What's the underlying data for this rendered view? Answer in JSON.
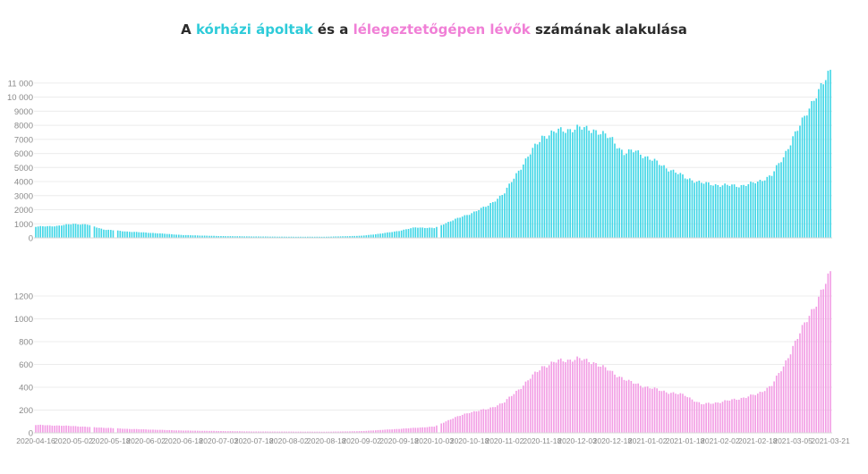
{
  "title": {
    "part1": "A ",
    "part2": "kórházi ápoltak",
    "part3": " és a ",
    "part4": "lélegeztetőgépen lévők",
    "part5": " számának alakulása"
  },
  "colors": {
    "hospitalized": "#3fd6e6",
    "ventilated": "#f29ce4",
    "title_cyan": "#2ecbd9",
    "title_pink": "#f07fd6"
  },
  "chart_data": [
    {
      "type": "bar",
      "title": "",
      "xlabel": "",
      "ylabel": "",
      "ylim": [
        0,
        11500
      ],
      "yticks": [
        0,
        1000,
        2000,
        3000,
        4000,
        5000,
        6000,
        7000,
        8000,
        9000,
        10000,
        11000
      ],
      "ytick_labels": [
        "0",
        "1000",
        "2000",
        "3000",
        "4000",
        "5000",
        "6000",
        "7000",
        "8000",
        "9000",
        "10 000",
        "11 000"
      ],
      "grid": true,
      "x_start": "2020-04-16",
      "x_end": "2021-03-21",
      "keypoints": [
        [
          "2020-04-16",
          800
        ],
        [
          "2020-04-25",
          850
        ],
        [
          "2020-05-02",
          1000
        ],
        [
          "2020-05-08",
          950
        ],
        [
          "2020-05-15",
          600
        ],
        [
          "2020-05-25",
          450
        ],
        [
          "2020-06-05",
          350
        ],
        [
          "2020-06-18",
          200
        ],
        [
          "2020-07-03",
          130
        ],
        [
          "2020-07-18",
          100
        ],
        [
          "2020-08-02",
          80
        ],
        [
          "2020-08-18",
          80
        ],
        [
          "2020-09-02",
          150
        ],
        [
          "2020-09-10",
          300
        ],
        [
          "2020-09-18",
          500
        ],
        [
          "2020-09-25",
          750
        ],
        [
          "2020-10-03",
          700
        ],
        [
          "2020-10-10",
          1200
        ],
        [
          "2020-10-18",
          1700
        ],
        [
          "2020-10-26",
          2300
        ],
        [
          "2020-11-02",
          3200
        ],
        [
          "2020-11-08",
          4800
        ],
        [
          "2020-11-13",
          6000
        ],
        [
          "2020-11-18",
          7200
        ],
        [
          "2020-11-25",
          7600
        ],
        [
          "2020-12-03",
          7800
        ],
        [
          "2020-12-10",
          7700
        ],
        [
          "2020-12-18",
          7000
        ],
        [
          "2020-12-23",
          6000
        ],
        [
          "2020-12-28",
          6200
        ],
        [
          "2021-01-02",
          5700
        ],
        [
          "2021-01-10",
          5000
        ],
        [
          "2021-01-18",
          4300
        ],
        [
          "2021-01-25",
          3900
        ],
        [
          "2021-02-02",
          3750
        ],
        [
          "2021-02-10",
          3700
        ],
        [
          "2021-02-18",
          3950
        ],
        [
          "2021-02-24",
          4500
        ],
        [
          "2021-03-01",
          5700
        ],
        [
          "2021-03-05",
          7200
        ],
        [
          "2021-03-10",
          8500
        ],
        [
          "2021-03-15",
          10300
        ],
        [
          "2021-03-21",
          11700
        ]
      ],
      "gaps": [
        "2020-05-10",
        "2020-05-20",
        "2020-10-05"
      ]
    },
    {
      "type": "bar",
      "title": "",
      "xlabel": "",
      "ylabel": "",
      "ylim": [
        0,
        1420
      ],
      "yticks": [
        0,
        200,
        400,
        600,
        800,
        1000,
        1200
      ],
      "ytick_labels": [
        "0",
        "200",
        "400",
        "600",
        "800",
        "1000",
        "1200"
      ],
      "grid": true,
      "x_start": "2020-04-16",
      "x_end": "2021-03-21",
      "xtick_labels": [
        "2020-04-16",
        "2020-05-02",
        "2020-05-18",
        "2020-06-02",
        "2020-06-18",
        "2020-07-03",
        "2020-07-18",
        "2020-08-02",
        "2020-08-18",
        "2020-09-02",
        "2020-09-18",
        "2020-10-03",
        "2020-10-18",
        "2020-11-02",
        "2020-11-18",
        "2020-12-03",
        "2020-12-18",
        "2021-01-02",
        "2021-01-18",
        "2021-02-02",
        "2021-02-18",
        "2021-03-05",
        "2021-03-21"
      ],
      "keypoints": [
        [
          "2020-04-16",
          70
        ],
        [
          "2020-05-02",
          60
        ],
        [
          "2020-05-10",
          50
        ],
        [
          "2020-05-25",
          35
        ],
        [
          "2020-06-18",
          20
        ],
        [
          "2020-07-18",
          12
        ],
        [
          "2020-08-18",
          10
        ],
        [
          "2020-09-02",
          15
        ],
        [
          "2020-09-18",
          35
        ],
        [
          "2020-10-03",
          55
        ],
        [
          "2020-10-10",
          120
        ],
        [
          "2020-10-18",
          180
        ],
        [
          "2020-10-26",
          210
        ],
        [
          "2020-11-02",
          270
        ],
        [
          "2020-11-10",
          420
        ],
        [
          "2020-11-18",
          580
        ],
        [
          "2020-11-25",
          630
        ],
        [
          "2020-12-03",
          650
        ],
        [
          "2020-12-10",
          620
        ],
        [
          "2020-12-18",
          530
        ],
        [
          "2020-12-25",
          450
        ],
        [
          "2021-01-02",
          400
        ],
        [
          "2021-01-10",
          360
        ],
        [
          "2021-01-18",
          330
        ],
        [
          "2021-01-25",
          250
        ],
        [
          "2021-02-02",
          270
        ],
        [
          "2021-02-10",
          300
        ],
        [
          "2021-02-18",
          340
        ],
        [
          "2021-02-24",
          420
        ],
        [
          "2021-03-01",
          580
        ],
        [
          "2021-03-05",
          760
        ],
        [
          "2021-03-10",
          950
        ],
        [
          "2021-03-15",
          1150
        ],
        [
          "2021-03-21",
          1390
        ]
      ],
      "gaps": [
        "2020-05-10",
        "2020-05-20",
        "2020-10-05"
      ]
    }
  ]
}
